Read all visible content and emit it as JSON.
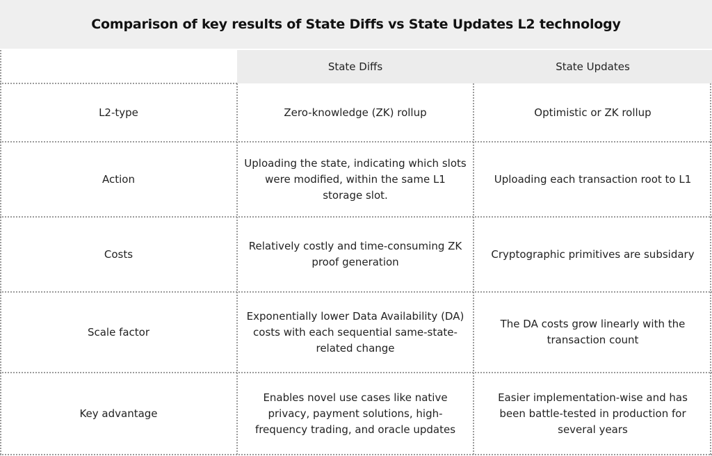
{
  "title": "Comparison of key results of State Diffs vs State Updates L2 technology",
  "columns": [
    "",
    "State Diffs",
    "State Updates"
  ],
  "rows": [
    {
      "label": "L2-type",
      "diffs": "Zero-knowledge (ZK) rollup",
      "updates": "Optimistic or ZK rollup"
    },
    {
      "label": "Action",
      "diffs": "Uploading the state, indicating which slots were modified, within the same L1 storage slot.",
      "updates": "Uploading each transaction root to L1"
    },
    {
      "label": "Costs",
      "diffs": "Relatively costly and time-consuming ZK proof generation",
      "updates": "Cryptographic primitives are subsidary"
    },
    {
      "label": "Scale factor",
      "diffs": "Exponentially lower Data Availability (DA) costs with each sequential same-state-related change",
      "updates": "The DA costs grow linearly with the transaction count"
    },
    {
      "label": "Key advantage",
      "diffs": "Enables novel use cases like native privacy, payment solutions, high-frequency trading, and oracle updates",
      "updates": "Easier implementation-wise and has been battle-tested in production for several years"
    }
  ]
}
